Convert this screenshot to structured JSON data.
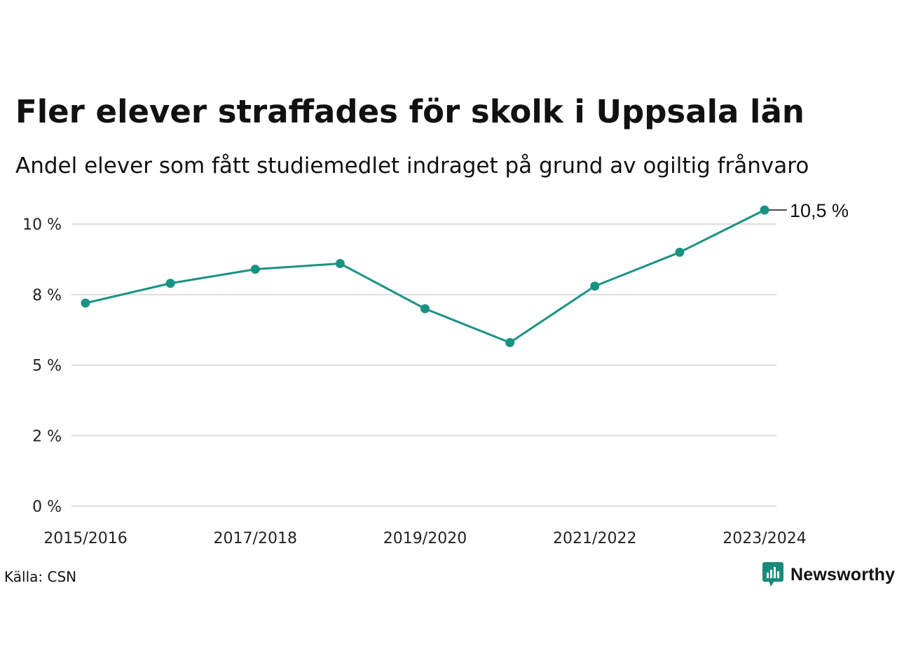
{
  "chart_data": {
    "type": "line",
    "title": "Fler elever straffades för skolk i Uppsala län",
    "subtitle": "Andel elever som fått studiemedlet indraget på grund av ogiltig frånvaro",
    "xlabel": "",
    "ylabel": "",
    "x": [
      "2015/2016",
      "2016/2017",
      "2017/2018",
      "2018/2019",
      "2019/2020",
      "2020/2021",
      "2021/2022",
      "2022/2023",
      "2023/2024"
    ],
    "x_tick_labels": [
      "2015/2016",
      "",
      "2017/2018",
      "",
      "2019/2020",
      "",
      "2021/2022",
      "",
      "2023/2024"
    ],
    "series": [
      {
        "values": [
          7.2,
          7.9,
          8.4,
          8.6,
          7.0,
          5.8,
          7.8,
          9.0,
          10.5
        ]
      }
    ],
    "ylim": [
      0,
      10.5
    ],
    "y_ticks": [
      0,
      2.5,
      5,
      7.5,
      10
    ],
    "y_tick_labels": [
      "0 %",
      "2 %",
      "5 %",
      "8 %",
      "10 %"
    ],
    "end_label": "10,5 %",
    "grid": true,
    "line_color": "#1a9283",
    "grid_color": "#dcdcdc"
  },
  "source": "Källa: CSN",
  "brand": {
    "name": "Newsworthy",
    "icon": "newsworthy-logo-icon",
    "color": "#1a8a7a"
  }
}
